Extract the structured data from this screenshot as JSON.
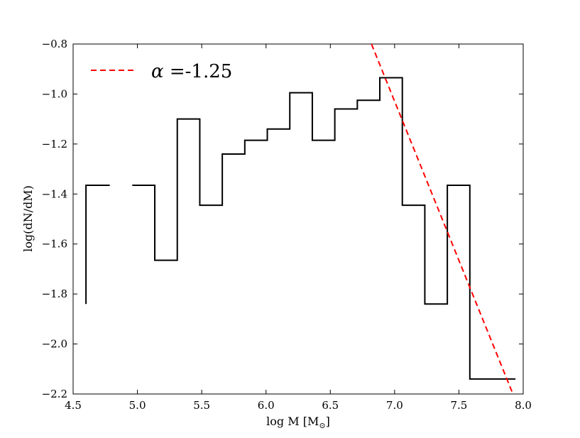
{
  "chart_data": {
    "type": "line",
    "xlabel": "log M [M",
    "xlabel_sub": "⊙",
    "xlabel_close": "]",
    "ylabel": "log(dN/dM)",
    "xlim": [
      4.5,
      8.0
    ],
    "ylim": [
      -2.2,
      -0.8
    ],
    "xticks": [
      4.5,
      5.0,
      5.5,
      6.0,
      6.5,
      7.0,
      7.5,
      8.0
    ],
    "xtick_labels": [
      "4.5",
      "5.0",
      "5.5",
      "6.0",
      "6.5",
      "7.0",
      "7.5",
      "8.0"
    ],
    "yticks": [
      -2.2,
      -2.0,
      -1.8,
      -1.6,
      -1.4,
      -1.2,
      -1.0,
      -0.8
    ],
    "ytick_labels": [
      "−2.2",
      "−2.0",
      "−1.8",
      "−1.6",
      "−1.4",
      "−1.2",
      "−1.0",
      "−0.8"
    ],
    "grid": false,
    "legend_position": "top-left",
    "series": [
      {
        "name": "",
        "style": "steps",
        "color": "#000000",
        "segments": [
          [
            [
              4.6,
              -1.84
            ],
            [
              4.6,
              -1.365
            ],
            [
              4.785,
              -1.365
            ]
          ],
          [
            [
              4.96,
              -1.365
            ],
            [
              5.135,
              -1.365
            ],
            [
              5.135,
              -1.665
            ],
            [
              5.31,
              -1.665
            ],
            [
              5.31,
              -1.1
            ],
            [
              5.485,
              -1.1
            ],
            [
              5.485,
              -1.445
            ],
            [
              5.66,
              -1.445
            ],
            [
              5.66,
              -1.24
            ],
            [
              5.835,
              -1.24
            ],
            [
              5.835,
              -1.185
            ],
            [
              6.01,
              -1.185
            ],
            [
              6.01,
              -1.14
            ],
            [
              6.185,
              -1.14
            ],
            [
              6.185,
              -0.995
            ],
            [
              6.36,
              -0.995
            ],
            [
              6.36,
              -1.185
            ],
            [
              6.535,
              -1.185
            ],
            [
              6.535,
              -1.06
            ],
            [
              6.71,
              -1.06
            ],
            [
              6.71,
              -1.025
            ],
            [
              6.885,
              -1.025
            ],
            [
              6.885,
              -0.935
            ],
            [
              7.06,
              -0.935
            ],
            [
              7.06,
              -1.445
            ],
            [
              7.235,
              -1.445
            ],
            [
              7.235,
              -1.84
            ],
            [
              7.41,
              -1.84
            ],
            [
              7.41,
              -1.365
            ],
            [
              7.585,
              -1.365
            ],
            [
              7.585,
              -2.14
            ],
            [
              7.94,
              -2.14
            ]
          ]
        ]
      },
      {
        "name": "α =-1.25",
        "style": "dashed",
        "color": "#ff0000",
        "points": [
          [
            6.82,
            -0.8
          ],
          [
            7.92,
            -2.2
          ]
        ]
      }
    ]
  },
  "legend": {
    "alpha_symbol": "α",
    "alpha_rest": " =-1.25"
  }
}
